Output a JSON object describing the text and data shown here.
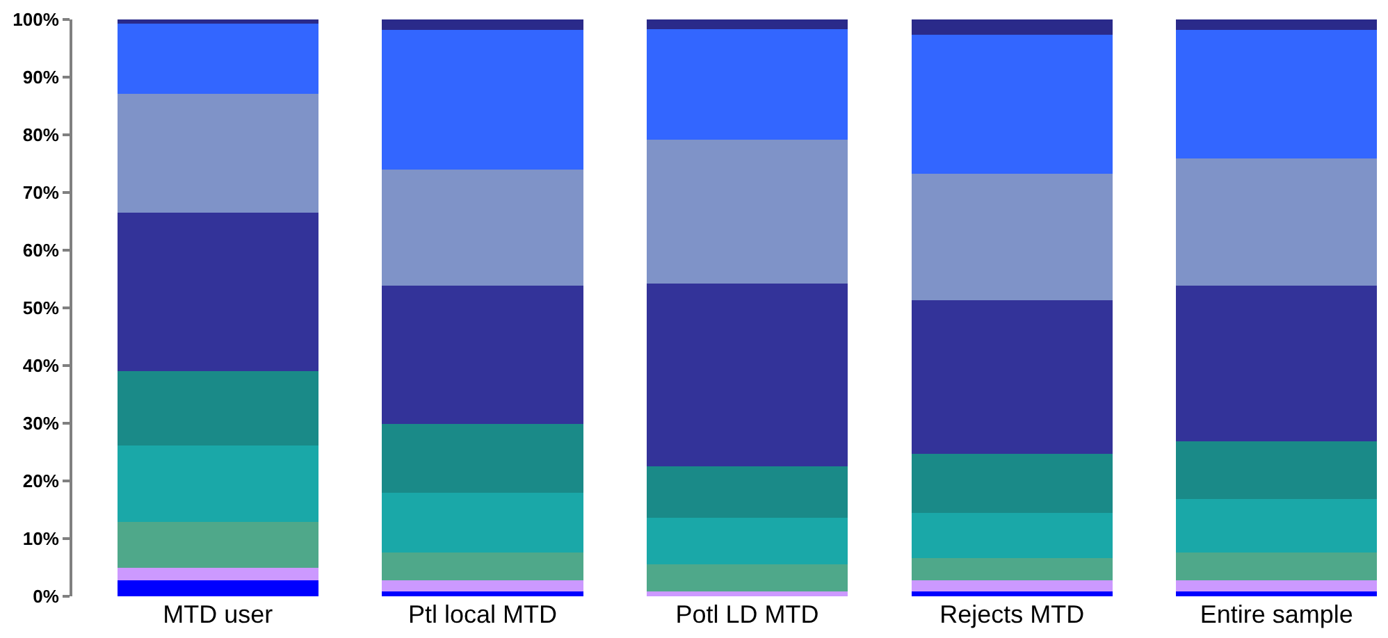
{
  "chart_data": {
    "type": "bar",
    "stacked": true,
    "categories": [
      "MTD user",
      "Ptl local MTD",
      "Potl LD MTD",
      "Rejects MTD",
      "Entire sample"
    ],
    "series": [
      {
        "color": "#0000ff",
        "values": [
          2.8,
          0.9,
          0,
          0.8,
          0.8
        ]
      },
      {
        "color": "#cc99ff",
        "values": [
          2.1,
          1.9,
          0.8,
          2.0,
          2.0
        ]
      },
      {
        "color": "#4fa88a",
        "values": [
          8.0,
          4.8,
          4.8,
          3.8,
          4.8
        ]
      },
      {
        "color": "#1aa8a8",
        "values": [
          13.3,
          10.3,
          8.0,
          7.9,
          9.3
        ]
      },
      {
        "color": "#1a8a88",
        "values": [
          12.8,
          12.0,
          8.9,
          10.2,
          10.0
        ]
      },
      {
        "color": "#333399",
        "values": [
          27.5,
          23.9,
          31.7,
          26.6,
          26.9
        ]
      },
      {
        "color": "#7f93c8",
        "values": [
          20.6,
          20.2,
          24.9,
          22.0,
          22.1
        ]
      },
      {
        "color": "#3366ff",
        "values": [
          12.2,
          24.2,
          19.2,
          24.0,
          22.3
        ]
      },
      {
        "color": "#2a2a8a",
        "values": [
          0.7,
          1.8,
          1.7,
          2.7,
          1.8
        ]
      }
    ],
    "ylim": [
      0,
      100
    ],
    "yticks": [
      {
        "value": 0,
        "label": "0%"
      },
      {
        "value": 10,
        "label": "10%"
      },
      {
        "value": 20,
        "label": "20%"
      },
      {
        "value": 30,
        "label": "30%"
      },
      {
        "value": 40,
        "label": "40%"
      },
      {
        "value": 50,
        "label": "50%"
      },
      {
        "value": 60,
        "label": "60%"
      },
      {
        "value": 70,
        "label": "70%"
      },
      {
        "value": 80,
        "label": "80%"
      },
      {
        "value": 90,
        "label": "90%"
      },
      {
        "value": 100,
        "label": "100%"
      }
    ],
    "grid": false
  }
}
